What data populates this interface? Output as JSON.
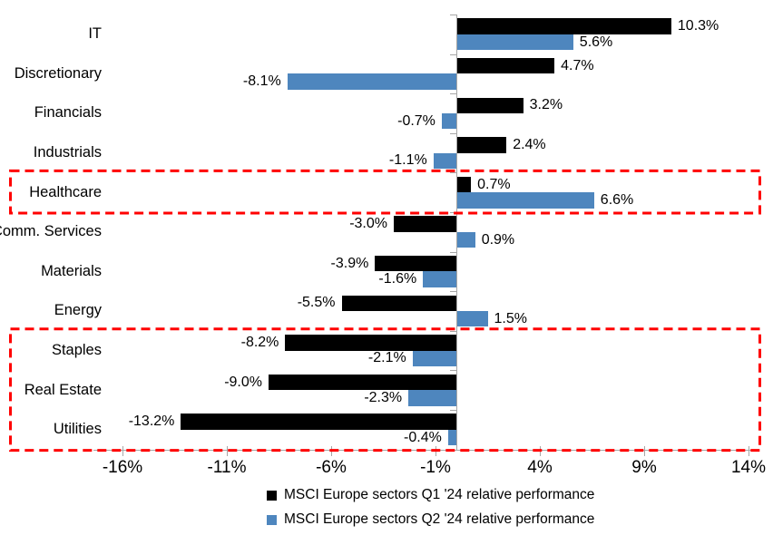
{
  "chart_data": {
    "type": "bar",
    "orientation": "horizontal",
    "title": "",
    "categories": [
      "IT",
      "Discretionary",
      "Financials",
      "Industrials",
      "Healthcare",
      "Comm. Services",
      "Materials",
      "Energy",
      "Staples",
      "Real Estate",
      "Utilities"
    ],
    "series": [
      {
        "name": "MSCI Europe sectors Q1 '24 relative performance",
        "color": "#000000",
        "values": [
          10.3,
          4.7,
          3.2,
          2.4,
          0.7,
          -3.0,
          -3.9,
          -5.5,
          -8.2,
          -9.0,
          -13.2
        ],
        "labels": [
          "10.3%",
          "4.7%",
          "3.2%",
          "2.4%",
          "0.7%",
          "-3.0%",
          "-3.9%",
          "-5.5%",
          "-8.2%",
          "-9.0%",
          "-13.2%"
        ]
      },
      {
        "name": "MSCI Europe sectors Q2 '24 relative performance",
        "color": "#4e86be",
        "values": [
          5.6,
          -8.1,
          -0.7,
          -1.1,
          6.6,
          0.9,
          -1.6,
          1.5,
          -2.1,
          -2.3,
          -0.4
        ],
        "labels": [
          "5.6%",
          "-8.1%",
          "-0.7%",
          "-1.1%",
          "6.6%",
          "0.9%",
          "-1.6%",
          "1.5%",
          "-2.1%",
          "-2.3%",
          "-0.4%"
        ]
      }
    ],
    "x_axis": {
      "min": -17.4,
      "max": 14.5,
      "ticks": [
        -16,
        -11,
        -6,
        -1,
        4,
        9,
        14
      ],
      "tick_labels": [
        "-16%",
        "-11%",
        "-6%",
        "-1%",
        "4%",
        "9%",
        "14%"
      ]
    },
    "grid": false,
    "legend_position": "bottom",
    "highlights": [
      {
        "name": "healthcare-highlight",
        "rows": [
          4
        ]
      },
      {
        "name": "defensives-highlight",
        "rows": [
          8,
          9,
          10
        ]
      }
    ],
    "colors": {
      "q1_bar": "#000000",
      "q2_bar": "#4e86be",
      "axis": "#a6a6a6",
      "highlight": "#ff0000"
    }
  }
}
